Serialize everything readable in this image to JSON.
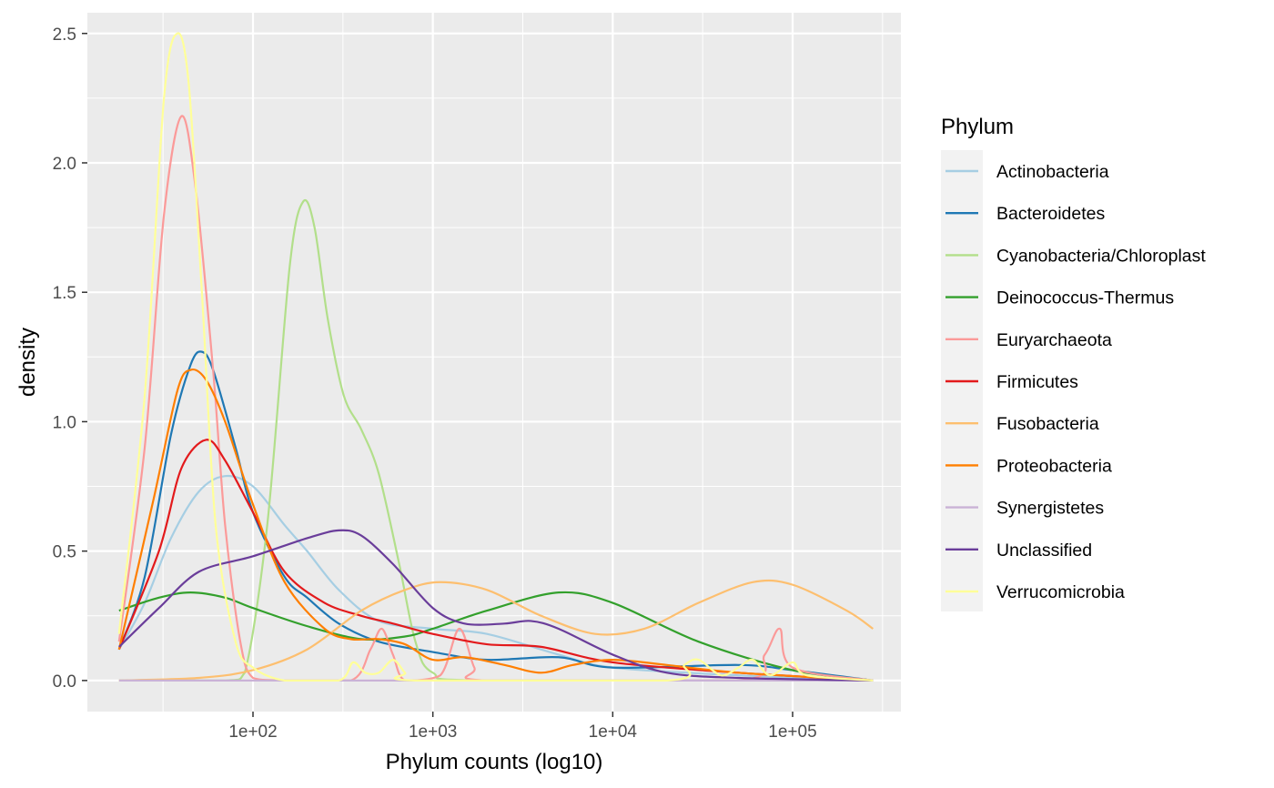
{
  "chart_data": {
    "type": "line",
    "xlabel": "Phylum counts (log10)",
    "ylabel": "density",
    "x_scale": "log10",
    "x_ticks": [
      100,
      1000,
      10000,
      100000
    ],
    "x_tick_labels": [
      "1e+02",
      "1e+03",
      "1e+04",
      "1e+05"
    ],
    "y_ticks": [
      0,
      0.5,
      1.0,
      1.5,
      2.0,
      2.5
    ],
    "y_tick_labels": [
      "0.0",
      "0.5",
      "1.0",
      "1.5",
      "2.0",
      "2.5"
    ],
    "xlim": [
      12,
      400000
    ],
    "ylim": [
      -0.12,
      2.58
    ],
    "grid": true,
    "legend_title": "Phylum",
    "legend_position": "right",
    "series": [
      {
        "name": "Actinobacteria",
        "color": "#A6CEE3",
        "points": [
          [
            18,
            0.12
          ],
          [
            25,
            0.3
          ],
          [
            35,
            0.55
          ],
          [
            50,
            0.73
          ],
          [
            70,
            0.79
          ],
          [
            100,
            0.75
          ],
          [
            150,
            0.6
          ],
          [
            200,
            0.5
          ],
          [
            300,
            0.35
          ],
          [
            500,
            0.23
          ],
          [
            1000,
            0.2
          ],
          [
            2000,
            0.18
          ],
          [
            5000,
            0.1
          ],
          [
            10000,
            0.05
          ],
          [
            50000,
            0.02
          ],
          [
            280000,
            0
          ]
        ]
      },
      {
        "name": "Bacteroidetes",
        "color": "#1F78B4",
        "points": [
          [
            18,
            0.12
          ],
          [
            25,
            0.4
          ],
          [
            35,
            0.95
          ],
          [
            45,
            1.22
          ],
          [
            52,
            1.27
          ],
          [
            60,
            1.2
          ],
          [
            80,
            0.9
          ],
          [
            100,
            0.65
          ],
          [
            150,
            0.4
          ],
          [
            200,
            0.32
          ],
          [
            300,
            0.22
          ],
          [
            500,
            0.15
          ],
          [
            1000,
            0.11
          ],
          [
            2000,
            0.08
          ],
          [
            5000,
            0.09
          ],
          [
            10000,
            0.05
          ],
          [
            50000,
            0.06
          ],
          [
            100000,
            0.04
          ],
          [
            280000,
            0
          ]
        ]
      },
      {
        "name": "Cyanobacteria/Chloroplast",
        "color": "#B2DF8A",
        "points": [
          [
            18,
            0
          ],
          [
            70,
            0
          ],
          [
            90,
            0.03
          ],
          [
            120,
            0.6
          ],
          [
            160,
            1.6
          ],
          [
            190,
            1.85
          ],
          [
            220,
            1.75
          ],
          [
            260,
            1.4
          ],
          [
            320,
            1.1
          ],
          [
            400,
            0.97
          ],
          [
            500,
            0.8
          ],
          [
            650,
            0.45
          ],
          [
            800,
            0.15
          ],
          [
            1000,
            0.03
          ],
          [
            2000,
            0
          ],
          [
            280000,
            0
          ]
        ]
      },
      {
        "name": "Deinococcus-Thermus",
        "color": "#33A02C",
        "points": [
          [
            18,
            0.27
          ],
          [
            30,
            0.32
          ],
          [
            45,
            0.34
          ],
          [
            70,
            0.32
          ],
          [
            100,
            0.28
          ],
          [
            200,
            0.21
          ],
          [
            400,
            0.16
          ],
          [
            700,
            0.17
          ],
          [
            1000,
            0.2
          ],
          [
            2000,
            0.27
          ],
          [
            5000,
            0.34
          ],
          [
            10000,
            0.3
          ],
          [
            30000,
            0.15
          ],
          [
            100000,
            0.04
          ],
          [
            280000,
            0
          ]
        ]
      },
      {
        "name": "Euryarchaeota",
        "color": "#FB9A99",
        "points": [
          [
            18,
            0.15
          ],
          [
            25,
            0.9
          ],
          [
            32,
            1.8
          ],
          [
            40,
            2.18
          ],
          [
            48,
            1.9
          ],
          [
            60,
            1.2
          ],
          [
            70,
            0.6
          ],
          [
            85,
            0.15
          ],
          [
            100,
            0.01
          ],
          [
            150,
            0
          ],
          [
            350,
            0
          ],
          [
            450,
            0.12
          ],
          [
            520,
            0.2
          ],
          [
            600,
            0.1
          ],
          [
            700,
            0
          ],
          [
            1100,
            0.02
          ],
          [
            1400,
            0.2
          ],
          [
            1700,
            0.05
          ],
          [
            2000,
            0
          ],
          [
            50000,
            0
          ],
          [
            70000,
            0.1
          ],
          [
            85000,
            0.2
          ],
          [
            100000,
            0.05
          ],
          [
            280000,
            0
          ]
        ]
      },
      {
        "name": "Firmicutes",
        "color": "#E31A1C",
        "points": [
          [
            18,
            0.12
          ],
          [
            30,
            0.5
          ],
          [
            40,
            0.82
          ],
          [
            55,
            0.93
          ],
          [
            70,
            0.85
          ],
          [
            100,
            0.65
          ],
          [
            150,
            0.42
          ],
          [
            250,
            0.3
          ],
          [
            400,
            0.25
          ],
          [
            600,
            0.22
          ],
          [
            1000,
            0.18
          ],
          [
            2000,
            0.14
          ],
          [
            4000,
            0.13
          ],
          [
            10000,
            0.07
          ],
          [
            50000,
            0.03
          ],
          [
            280000,
            0
          ]
        ]
      },
      {
        "name": "Fusobacteria",
        "color": "#FDBF6F",
        "points": [
          [
            18,
            0
          ],
          [
            50,
            0.01
          ],
          [
            100,
            0.04
          ],
          [
            200,
            0.12
          ],
          [
            400,
            0.27
          ],
          [
            700,
            0.35
          ],
          [
            1100,
            0.38
          ],
          [
            2000,
            0.35
          ],
          [
            4000,
            0.25
          ],
          [
            8000,
            0.18
          ],
          [
            15000,
            0.2
          ],
          [
            30000,
            0.3
          ],
          [
            60000,
            0.38
          ],
          [
            100000,
            0.37
          ],
          [
            200000,
            0.27
          ],
          [
            280000,
            0.2
          ]
        ]
      },
      {
        "name": "Proteobacteria",
        "color": "#FF7F00",
        "points": [
          [
            18,
            0.12
          ],
          [
            28,
            0.7
          ],
          [
            38,
            1.12
          ],
          [
            45,
            1.2
          ],
          [
            55,
            1.16
          ],
          [
            70,
            1.0
          ],
          [
            100,
            0.68
          ],
          [
            150,
            0.38
          ],
          [
            250,
            0.2
          ],
          [
            350,
            0.16
          ],
          [
            500,
            0.16
          ],
          [
            700,
            0.14
          ],
          [
            1000,
            0.08
          ],
          [
            1500,
            0.09
          ],
          [
            2500,
            0.06
          ],
          [
            4000,
            0.03
          ],
          [
            6000,
            0.06
          ],
          [
            10000,
            0.08
          ],
          [
            20000,
            0.06
          ],
          [
            50000,
            0.03
          ],
          [
            280000,
            0
          ]
        ]
      },
      {
        "name": "Synergistetes",
        "color": "#CAB2D6",
        "points": [
          [
            18,
            0
          ],
          [
            280000,
            0
          ]
        ]
      },
      {
        "name": "Unclassified",
        "color": "#6A3D9A",
        "points": [
          [
            18,
            0.13
          ],
          [
            30,
            0.28
          ],
          [
            50,
            0.42
          ],
          [
            100,
            0.48
          ],
          [
            200,
            0.55
          ],
          [
            300,
            0.58
          ],
          [
            400,
            0.56
          ],
          [
            600,
            0.45
          ],
          [
            1000,
            0.28
          ],
          [
            1500,
            0.22
          ],
          [
            2500,
            0.22
          ],
          [
            3500,
            0.23
          ],
          [
            5000,
            0.2
          ],
          [
            10000,
            0.1
          ],
          [
            20000,
            0.03
          ],
          [
            50000,
            0.01
          ],
          [
            280000,
            0
          ]
        ]
      },
      {
        "name": "Verrucomicrobia",
        "color": "#FFFF99",
        "points": [
          [
            18,
            0.18
          ],
          [
            25,
            1.1
          ],
          [
            32,
            2.25
          ],
          [
            38,
            2.5
          ],
          [
            44,
            2.3
          ],
          [
            52,
            1.5
          ],
          [
            62,
            0.6
          ],
          [
            80,
            0.15
          ],
          [
            100,
            0.05
          ],
          [
            150,
            0
          ],
          [
            300,
            0
          ],
          [
            360,
            0.07
          ],
          [
            420,
            0.03
          ],
          [
            500,
            0.03
          ],
          [
            600,
            0.08
          ],
          [
            700,
            0.03
          ],
          [
            800,
            0
          ],
          [
            20000,
            0
          ],
          [
            25000,
            0.06
          ],
          [
            30000,
            0.08
          ],
          [
            40000,
            0.02
          ],
          [
            50000,
            0.05
          ],
          [
            60000,
            0.08
          ],
          [
            75000,
            0.02
          ],
          [
            100000,
            0.07
          ],
          [
            120000,
            0.02
          ],
          [
            280000,
            0
          ]
        ]
      }
    ]
  }
}
